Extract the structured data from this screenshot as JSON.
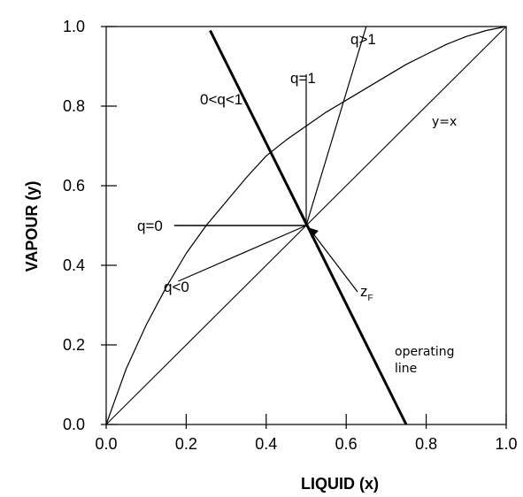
{
  "chart_data": {
    "type": "line",
    "title": "",
    "xlabel": "LIQUID (x)",
    "ylabel": "VAPOUR (y)",
    "xlim": [
      0,
      1
    ],
    "ylim": [
      0,
      1
    ],
    "x_ticks": [
      "0.0",
      "0.2",
      "0.4",
      "0.6",
      "0.8",
      "1.0"
    ],
    "y_ticks": [
      "0.0",
      "0.2",
      "0.4",
      "0.6",
      "0.8",
      "1.0"
    ],
    "grid": false,
    "legend": "none",
    "feed_point": {
      "x": 0.5,
      "y": 0.5
    },
    "series": [
      {
        "name": "y=x",
        "points": [
          [
            0,
            0
          ],
          [
            1,
            1
          ]
        ]
      },
      {
        "name": "",
        "points": [
          [
            0,
            0
          ],
          [
            0.05,
            0.14
          ],
          [
            0.1,
            0.25
          ],
          [
            0.15,
            0.345
          ],
          [
            0.2,
            0.43
          ],
          [
            0.25,
            0.5
          ],
          [
            0.3,
            0.56
          ],
          [
            0.35,
            0.62
          ],
          [
            0.4,
            0.675
          ],
          [
            0.45,
            0.715
          ],
          [
            0.5,
            0.75
          ],
          [
            0.55,
            0.785
          ],
          [
            0.6,
            0.815
          ],
          [
            0.65,
            0.845
          ],
          [
            0.7,
            0.875
          ],
          [
            0.75,
            0.905
          ],
          [
            0.8,
            0.93
          ],
          [
            0.85,
            0.955
          ],
          [
            0.9,
            0.975
          ],
          [
            0.95,
            0.99
          ],
          [
            1,
            1
          ]
        ]
      },
      {
        "name": "operating line",
        "points": [
          [
            0.26,
            0.99
          ],
          [
            0.75,
            0
          ]
        ]
      }
    ],
    "q_lines": [
      {
        "label": "q>1",
        "end": [
          0.65,
          1.0
        ]
      },
      {
        "label": "q=1",
        "end": [
          0.5,
          0.88
        ]
      },
      {
        "label": "0<q<1",
        "end": [
          0.34,
          0.83
        ]
      },
      {
        "label": "q=0",
        "end": [
          0.17,
          0.5
        ]
      },
      {
        "label": "q<0",
        "end": [
          0.18,
          0.36
        ]
      }
    ],
    "annotations": {
      "q_gt_1": "q>1",
      "q_eq_1": "q=1",
      "q_between": "0<q<1",
      "q_eq_0": "q=0",
      "q_lt_0": "q<0",
      "diag": "y=x",
      "zf_main": "z",
      "zf_sub": "F",
      "op_line_1": "operating",
      "op_line_2": "line"
    },
    "colors": {
      "lines": "#000000",
      "background": "#ffffff"
    }
  }
}
